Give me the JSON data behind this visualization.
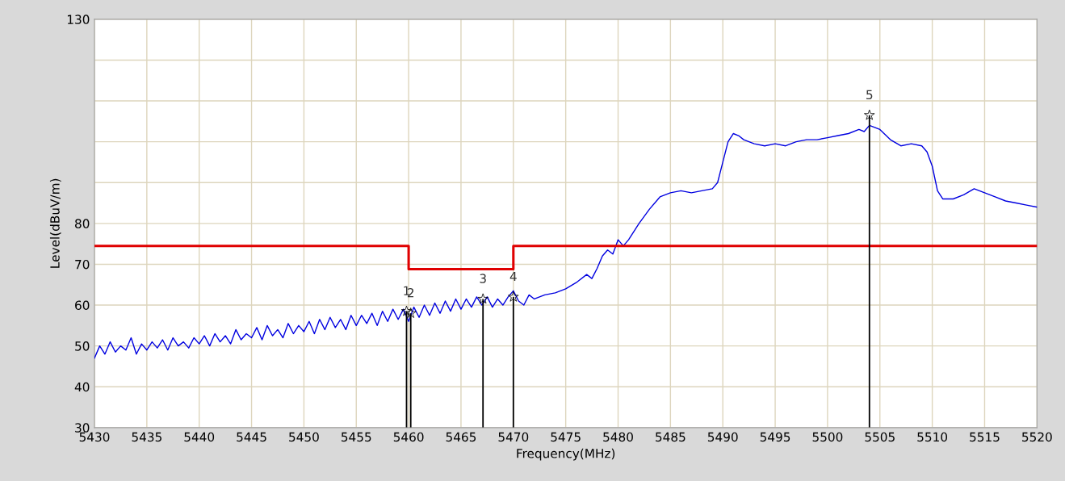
{
  "chart_data": {
    "type": "line",
    "xlabel": "Frequency(MHz)",
    "ylabel": "Level(dBuV/m)",
    "xlim": [
      5430,
      5520
    ],
    "xticks": [
      5430,
      5435,
      5440,
      5445,
      5450,
      5455,
      5460,
      5465,
      5470,
      5475,
      5480,
      5485,
      5490,
      5495,
      5500,
      5505,
      5510,
      5515,
      5520
    ],
    "ylim": [
      30,
      130
    ],
    "yticks": [
      30,
      40,
      50,
      60,
      70,
      80,
      {
        "value": 90,
        "label": null
      },
      {
        "value": 100,
        "label": null
      },
      {
        "value": 110,
        "label": null
      },
      {
        "value": 120,
        "label": null
      },
      130
    ],
    "grid": true,
    "legend": false,
    "series": [
      {
        "color": "#0000e0",
        "x": [
          5430,
          5430.5,
          5431,
          5431.5,
          5432,
          5432.5,
          5433,
          5433.5,
          5434,
          5434.5,
          5435,
          5435.5,
          5436,
          5436.5,
          5437,
          5437.5,
          5438,
          5438.5,
          5439,
          5439.5,
          5440,
          5440.5,
          5441,
          5441.5,
          5442,
          5442.5,
          5443,
          5443.5,
          5444,
          5444.5,
          5445,
          5445.5,
          5446,
          5446.5,
          5447,
          5447.5,
          5448,
          5448.5,
          5449,
          5449.5,
          5450,
          5450.5,
          5451,
          5451.5,
          5452,
          5452.5,
          5453,
          5453.5,
          5454,
          5454.5,
          5455,
          5455.5,
          5456,
          5456.5,
          5457,
          5457.5,
          5458,
          5458.5,
          5459,
          5459.5,
          5460,
          5460.5,
          5461,
          5461.5,
          5462,
          5462.5,
          5463,
          5463.5,
          5464,
          5464.5,
          5465,
          5465.5,
          5466,
          5466.5,
          5467,
          5467.5,
          5468,
          5468.5,
          5469,
          5469.5,
          5470,
          5470.5,
          5471,
          5471.5,
          5472,
          5473,
          5474,
          5475,
          5476,
          5477,
          5477.5,
          5478,
          5478.5,
          5479,
          5479.5,
          5480,
          5480.5,
          5481,
          5482,
          5483,
          5484,
          5485,
          5486,
          5487,
          5488,
          5489,
          5489.5,
          5490,
          5490.5,
          5491,
          5491.5,
          5492,
          5493,
          5494,
          5495,
          5496,
          5497,
          5498,
          5499,
          5500,
          5501,
          5502,
          5503,
          5503.5,
          5504,
          5505,
          5506,
          5507,
          5508,
          5509,
          5509.5,
          5510,
          5510.5,
          5511,
          5512,
          5513,
          5514,
          5515,
          5516,
          5517,
          5518,
          5519,
          5520
        ],
        "values": [
          47,
          50,
          48,
          51,
          48.5,
          50,
          49,
          52,
          48,
          50.5,
          49,
          51,
          49.5,
          51.5,
          49,
          52,
          50,
          51,
          49.5,
          52,
          50.5,
          52.5,
          50,
          53,
          51,
          52.5,
          50.5,
          54,
          51.5,
          53,
          52,
          54.5,
          51.5,
          55,
          52.5,
          54,
          52,
          55.5,
          53,
          55,
          53.5,
          56,
          53,
          56.5,
          54,
          57,
          54.5,
          56.5,
          54,
          57.5,
          55,
          57.5,
          55.5,
          58,
          55,
          58.5,
          56,
          59,
          56.5,
          59,
          56,
          59.5,
          57,
          60,
          57.5,
          60.5,
          58,
          61,
          58.5,
          61.5,
          59,
          61.5,
          59.5,
          62,
          60,
          62,
          59.5,
          61.5,
          60,
          62,
          63.5,
          61,
          60,
          62.5,
          61.5,
          62.5,
          63,
          64,
          65.5,
          67.5,
          66.5,
          69,
          72,
          73.5,
          72.5,
          76,
          74.5,
          76,
          80,
          83.5,
          86.5,
          87.5,
          88,
          87.5,
          88,
          88.5,
          90,
          95,
          100,
          102,
          101.5,
          100.5,
          99.5,
          99,
          99.5,
          99,
          100,
          100.5,
          100.5,
          101,
          101.5,
          102,
          103,
          102.5,
          104,
          103,
          100.5,
          99,
          99.5,
          99,
          97.5,
          94,
          88,
          86,
          86,
          87,
          88.5,
          87.5,
          86.5,
          85.5,
          85,
          84.5,
          84
        ]
      },
      {
        "type": "step",
        "color": "#e00000",
        "x": [
          5430,
          5460,
          5470,
          5520
        ],
        "values": [
          74.5,
          68.8,
          74.5,
          74.5
        ]
      },
      {
        "type": "lollipop",
        "color": "#000000",
        "marker": "star",
        "x": [
          5459.8,
          5460.2,
          5467.1,
          5470,
          5504
        ],
        "values": [
          58.5,
          58,
          61.5,
          62,
          106.5
        ]
      }
    ],
    "annotations": [
      {
        "text": "1",
        "x": 5459.8,
        "y": 58.5
      },
      {
        "text": "2",
        "x": 5460.2,
        "y": 58
      },
      {
        "text": "3",
        "x": 5467.1,
        "y": 61.5
      },
      {
        "text": "4",
        "x": 5470,
        "y": 62
      },
      {
        "text": "5",
        "x": 5504,
        "y": 106.5
      }
    ]
  }
}
